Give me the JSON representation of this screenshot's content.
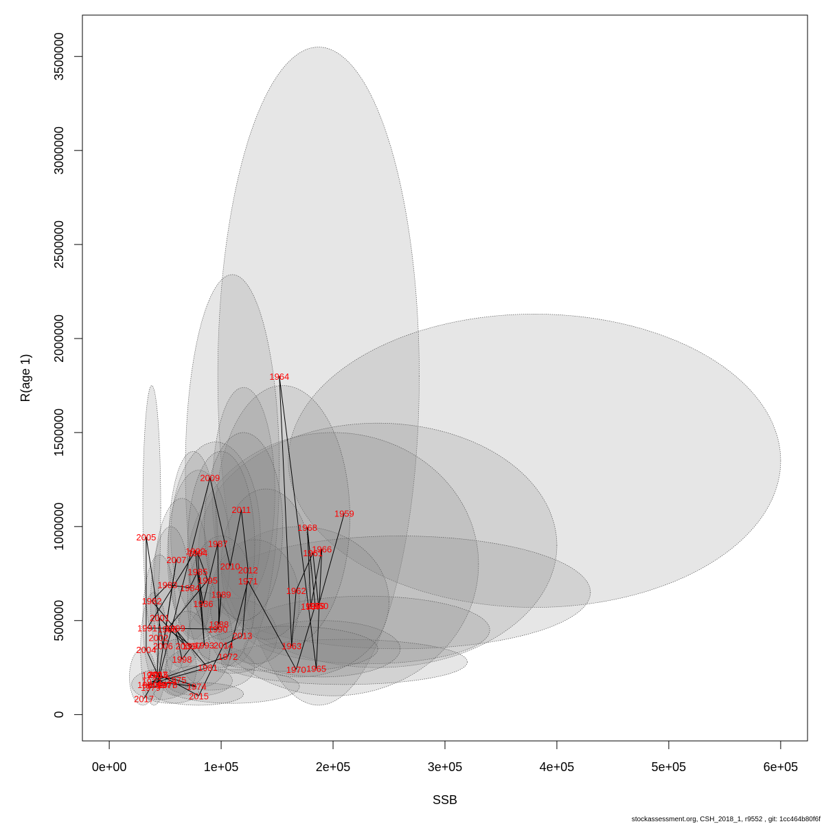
{
  "footer": "stockassessment.org, CSH_2018_1, r9552 , git: 1cc464b80f6f",
  "chart_data": {
    "type": "scatter",
    "title": "",
    "xlabel": "SSB",
    "ylabel": "R(age 1)",
    "xlim": [
      -24000,
      624000
    ],
    "ylim": [
      -140000,
      3720000
    ],
    "x_ticks": [
      0,
      100000,
      200000,
      300000,
      400000,
      500000,
      600000
    ],
    "x_tick_labels": [
      "0e+00",
      "1e+05",
      "2e+05",
      "3e+05",
      "4e+05",
      "5e+05",
      "6e+05"
    ],
    "y_ticks": [
      0,
      500000,
      1000000,
      1500000,
      2000000,
      2500000,
      3000000,
      3500000
    ],
    "y_tick_labels": [
      "0",
      "500000",
      "1000000",
      "1500000",
      "2000000",
      "2500000",
      "3000000",
      "3500000"
    ],
    "ellipse_fill": "#808080",
    "ellipse_fill_opacity": 0.2,
    "ellipse_stroke": "#555555",
    "label_color": "#ff0000",
    "line_color": "#000000",
    "grid": false,
    "legend": "none",
    "ellipses": [
      {
        "cx": 187000,
        "cy": 1800000,
        "rx": 90000,
        "ry": 1750000
      },
      {
        "cx": 380000,
        "cy": 1350000,
        "rx": 220000,
        "ry": 780000
      },
      {
        "cx": 240000,
        "cy": 900000,
        "rx": 160000,
        "ry": 650000
      },
      {
        "cx": 200000,
        "cy": 800000,
        "rx": 130000,
        "ry": 700000
      },
      {
        "cx": 260000,
        "cy": 650000,
        "rx": 170000,
        "ry": 300000
      },
      {
        "cx": 230000,
        "cy": 450000,
        "rx": 110000,
        "ry": 180000
      },
      {
        "cx": 210000,
        "cy": 280000,
        "rx": 110000,
        "ry": 120000
      },
      {
        "cx": 190000,
        "cy": 350000,
        "rx": 70000,
        "ry": 150000
      },
      {
        "cx": 170000,
        "cy": 600000,
        "rx": 80000,
        "ry": 400000
      },
      {
        "cx": 155000,
        "cy": 1050000,
        "rx": 60000,
        "ry": 700000
      },
      {
        "cx": 120000,
        "cy": 1180000,
        "rx": 28000,
        "ry": 560000
      },
      {
        "cx": 110000,
        "cy": 1300000,
        "rx": 42000,
        "ry": 1040000
      },
      {
        "cx": 95000,
        "cy": 950000,
        "rx": 40000,
        "ry": 500000
      },
      {
        "cx": 80000,
        "cy": 850000,
        "rx": 28000,
        "ry": 450000
      },
      {
        "cx": 75000,
        "cy": 900000,
        "rx": 22000,
        "ry": 500000
      },
      {
        "cx": 65000,
        "cy": 700000,
        "rx": 25000,
        "ry": 450000
      },
      {
        "cx": 55000,
        "cy": 600000,
        "rx": 18000,
        "ry": 400000
      },
      {
        "cx": 45000,
        "cy": 500000,
        "rx": 15000,
        "ry": 350000
      },
      {
        "cx": 40000,
        "cy": 350000,
        "rx": 12000,
        "ry": 300000
      },
      {
        "cx": 38000,
        "cy": 1100000,
        "rx": 8000,
        "ry": 650000
      },
      {
        "cx": 30000,
        "cy": 200000,
        "rx": 12000,
        "ry": 150000
      },
      {
        "cx": 45000,
        "cy": 160000,
        "rx": 25000,
        "ry": 80000
      },
      {
        "cx": 55000,
        "cy": 120000,
        "rx": 25000,
        "ry": 60000
      },
      {
        "cx": 80000,
        "cy": 180000,
        "rx": 30000,
        "ry": 80000
      },
      {
        "cx": 90000,
        "cy": 250000,
        "rx": 40000,
        "ry": 120000
      },
      {
        "cx": 110000,
        "cy": 420000,
        "rx": 40000,
        "ry": 200000
      },
      {
        "cx": 130000,
        "cy": 600000,
        "rx": 40000,
        "ry": 330000
      },
      {
        "cx": 140000,
        "cy": 800000,
        "rx": 40000,
        "ry": 400000
      },
      {
        "cx": 100000,
        "cy": 600000,
        "rx": 30000,
        "ry": 350000
      },
      {
        "cx": 85000,
        "cy": 400000,
        "rx": 25000,
        "ry": 250000
      },
      {
        "cx": 70000,
        "cy": 350000,
        "rx": 20000,
        "ry": 200000
      },
      {
        "cx": 60000,
        "cy": 250000,
        "rx": 18000,
        "ry": 150000
      },
      {
        "cx": 100000,
        "cy": 900000,
        "rx": 30000,
        "ry": 500000
      },
      {
        "cx": 120000,
        "cy": 1000000,
        "rx": 35000,
        "ry": 500000
      },
      {
        "cx": 160000,
        "cy": 350000,
        "rx": 80000,
        "ry": 120000
      },
      {
        "cx": 110000,
        "cy": 150000,
        "rx": 60000,
        "ry": 90000
      },
      {
        "cx": 80000,
        "cy": 110000,
        "rx": 40000,
        "ry": 60000
      }
    ],
    "points": [
      {
        "year": "1959",
        "x": 210000,
        "y": 1070000
      },
      {
        "year": "1960",
        "x": 187000,
        "y": 580000
      },
      {
        "year": "1961",
        "x": 182000,
        "y": 860000
      },
      {
        "year": "1962",
        "x": 167000,
        "y": 660000
      },
      {
        "year": "1963",
        "x": 163000,
        "y": 365000
      },
      {
        "year": "1964",
        "x": 152000,
        "y": 1800000
      },
      {
        "year": "1965",
        "x": 185000,
        "y": 245000
      },
      {
        "year": "1966",
        "x": 190000,
        "y": 880000
      },
      {
        "year": "1967",
        "x": 180000,
        "y": 575000
      },
      {
        "year": "1968",
        "x": 177000,
        "y": 995000
      },
      {
        "year": "1969",
        "x": 184000,
        "y": 580000
      },
      {
        "year": "1970",
        "x": 167000,
        "y": 240000
      },
      {
        "year": "1971",
        "x": 124000,
        "y": 710000
      },
      {
        "year": "1972",
        "x": 106000,
        "y": 310000
      },
      {
        "year": "1973",
        "x": 38000,
        "y": 175000
      },
      {
        "year": "1974",
        "x": 78000,
        "y": 150000
      },
      {
        "year": "1975",
        "x": 60000,
        "y": 185000
      },
      {
        "year": "1976",
        "x": 38000,
        "y": 210000
      },
      {
        "year": "1977",
        "x": 51000,
        "y": 160000
      },
      {
        "year": "1978",
        "x": 52000,
        "y": 160000
      },
      {
        "year": "1979",
        "x": 37000,
        "y": 145000
      },
      {
        "year": "1980",
        "x": 34000,
        "y": 160000
      },
      {
        "year": "1981",
        "x": 88000,
        "y": 250000
      },
      {
        "year": "1982",
        "x": 38000,
        "y": 605000
      },
      {
        "year": "1983",
        "x": 52000,
        "y": 690000
      },
      {
        "year": "1984",
        "x": 72000,
        "y": 675000
      },
      {
        "year": "1985",
        "x": 79000,
        "y": 760000
      },
      {
        "year": "1986",
        "x": 84000,
        "y": 590000
      },
      {
        "year": "1987",
        "x": 97000,
        "y": 910000
      },
      {
        "year": "1988",
        "x": 98000,
        "y": 480000
      },
      {
        "year": "1989",
        "x": 100000,
        "y": 640000
      },
      {
        "year": "1990",
        "x": 97000,
        "y": 455000
      },
      {
        "year": "1991",
        "x": 34000,
        "y": 460000
      },
      {
        "year": "1992",
        "x": 77000,
        "y": 870000
      },
      {
        "year": "1993",
        "x": 85000,
        "y": 370000
      },
      {
        "year": "1994",
        "x": 79000,
        "y": 860000
      },
      {
        "year": "1995",
        "x": 88000,
        "y": 715000
      },
      {
        "year": "1996",
        "x": 52000,
        "y": 455000
      },
      {
        "year": "1997",
        "x": 74000,
        "y": 365000
      },
      {
        "year": "1998",
        "x": 65000,
        "y": 295000
      },
      {
        "year": "1999",
        "x": 59000,
        "y": 460000
      },
      {
        "year": "2000",
        "x": 68000,
        "y": 365000
      },
      {
        "year": "2001",
        "x": 45000,
        "y": 515000
      },
      {
        "year": "2002",
        "x": 44000,
        "y": 410000
      },
      {
        "year": "2003",
        "x": 43000,
        "y": 215000
      },
      {
        "year": "2004",
        "x": 33000,
        "y": 345000
      },
      {
        "year": "2005",
        "x": 33000,
        "y": 945000
      },
      {
        "year": "2006",
        "x": 48000,
        "y": 365000
      },
      {
        "year": "2007",
        "x": 60000,
        "y": 825000
      },
      {
        "year": "2008",
        "x": 43000,
        "y": 160000
      },
      {
        "year": "2009",
        "x": 90000,
        "y": 1260000
      },
      {
        "year": "2010",
        "x": 108000,
        "y": 790000
      },
      {
        "year": "2011",
        "x": 118000,
        "y": 1090000
      },
      {
        "year": "2012",
        "x": 124000,
        "y": 770000
      },
      {
        "year": "2013",
        "x": 119000,
        "y": 420000
      },
      {
        "year": "2014",
        "x": 102000,
        "y": 370000
      },
      {
        "year": "2015",
        "x": 80000,
        "y": 100000
      },
      {
        "year": "2016",
        "x": 44000,
        "y": 215000
      },
      {
        "year": "2017",
        "x": 31000,
        "y": 85000
      }
    ]
  }
}
